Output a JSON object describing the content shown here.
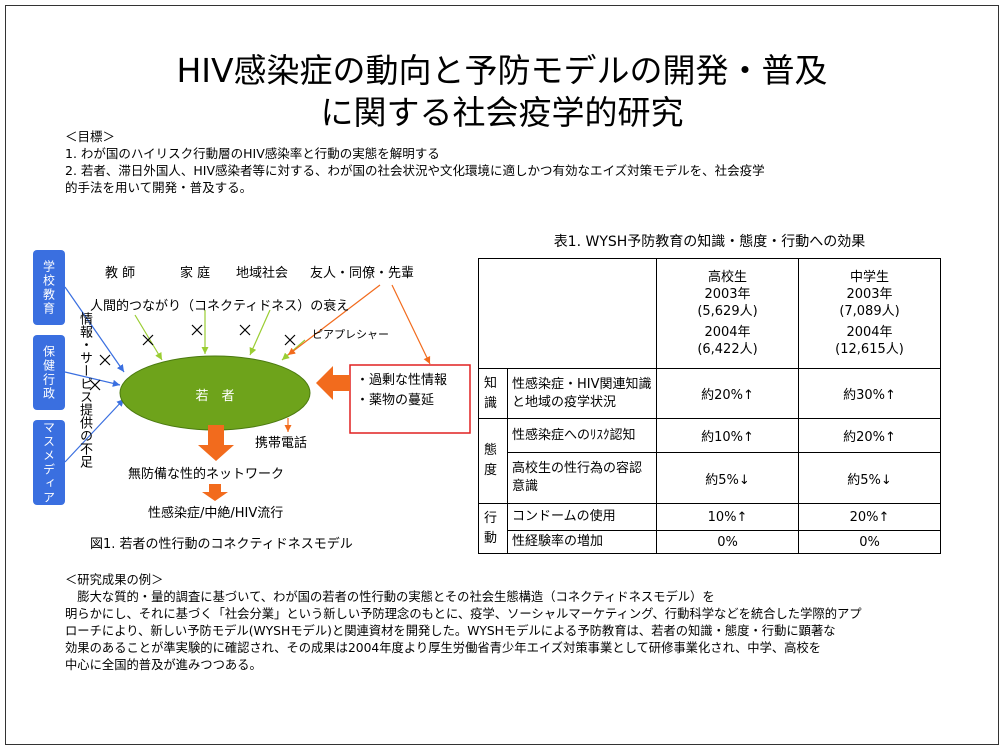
{
  "title": [
    "HIV感染症の動向と予防モデルの開発・普及",
    "に関する社会疫学的研究"
  ],
  "goals": {
    "heading": "＜目標＞",
    "lines": [
      "1. わが国のハイリスク行動層のHIV感染率と行動の実態を解明する",
      "2. 若者、滞日外国人、HIV感染者等に対する、わが国の社会状況や文化環境に適しかつ有効なエイズ対策モデルを、社会疫学",
      "的手法を用いて開発・普及する。"
    ]
  },
  "figure": {
    "sectors": [
      "学校教育",
      "保健行政",
      "マスメディア"
    ],
    "lack": "情報・サービス提供の不足",
    "influences": [
      "教 師",
      "家 庭",
      "地域社会",
      "友人・同僚・先輩"
    ],
    "decline": "人間的つながり（コネクティドネス）の衰え",
    "peer": "ピアプレシャー",
    "center": "若　者",
    "pressures": [
      "・過剰な性情報",
      "・薬物の蔓延"
    ],
    "phone": "携帯電話",
    "network": "無防備な性的ネットワーク",
    "outcome": "性感染症/中絶/HIV流行",
    "caption": "図1. 若者の性行動のコネクティドネスモデル"
  },
  "table": {
    "title": "表1. WYSH予防教育の知識・態度・行動への効果",
    "columns": [
      [
        "高校生",
        "2003年",
        "(5,629人)",
        "2004年",
        "(6,422人)"
      ],
      [
        "中学生",
        "2003年",
        "(7,089人)",
        "2004年",
        "(12,615人)"
      ]
    ],
    "groups": [
      {
        "name": "知識",
        "rows": [
          [
            "性感染症・HIV関連知識と地域の疫学状況",
            "約20%↑",
            "約30%↑"
          ]
        ]
      },
      {
        "name": "態度",
        "rows": [
          [
            "性感染症へのﾘｽｸ認知",
            "約10%↑",
            "約20%↑"
          ],
          [
            "高校生の性行為の容認意識",
            "約5%↓",
            "約5%↓"
          ]
        ]
      },
      {
        "name": "行動",
        "rows": [
          [
            "コンドームの使用",
            "10%↑",
            "20%↑"
          ],
          [
            "性経験率の増加",
            "0%",
            "0%"
          ]
        ]
      }
    ]
  },
  "results": {
    "heading": "＜研究成果の例＞",
    "lines": [
      "　膨大な質的・量的調査に基づいて、わが国の若者の性行動の実態とその社会生態構造（コネクティドネスモデル）を",
      "明らかにし、それに基づく「社会分業」という新しい予防理念のもとに、疫学、ソーシャルマーケティング、行動科学などを統合した学際的アプ",
      "ローチにより、新しい予防モデル(WYSHモデル)と関連資材を開発した。WYSHモデルによる予防教育は、若者の知識・態度・行動に顕著な",
      "効果のあることが準実験的に確認され、その成果は2004年度より厚生労働省青少年エイズ対策事業として研修事業化され、中学、高校を",
      "中心に全国的普及が進みつつある。"
    ]
  }
}
